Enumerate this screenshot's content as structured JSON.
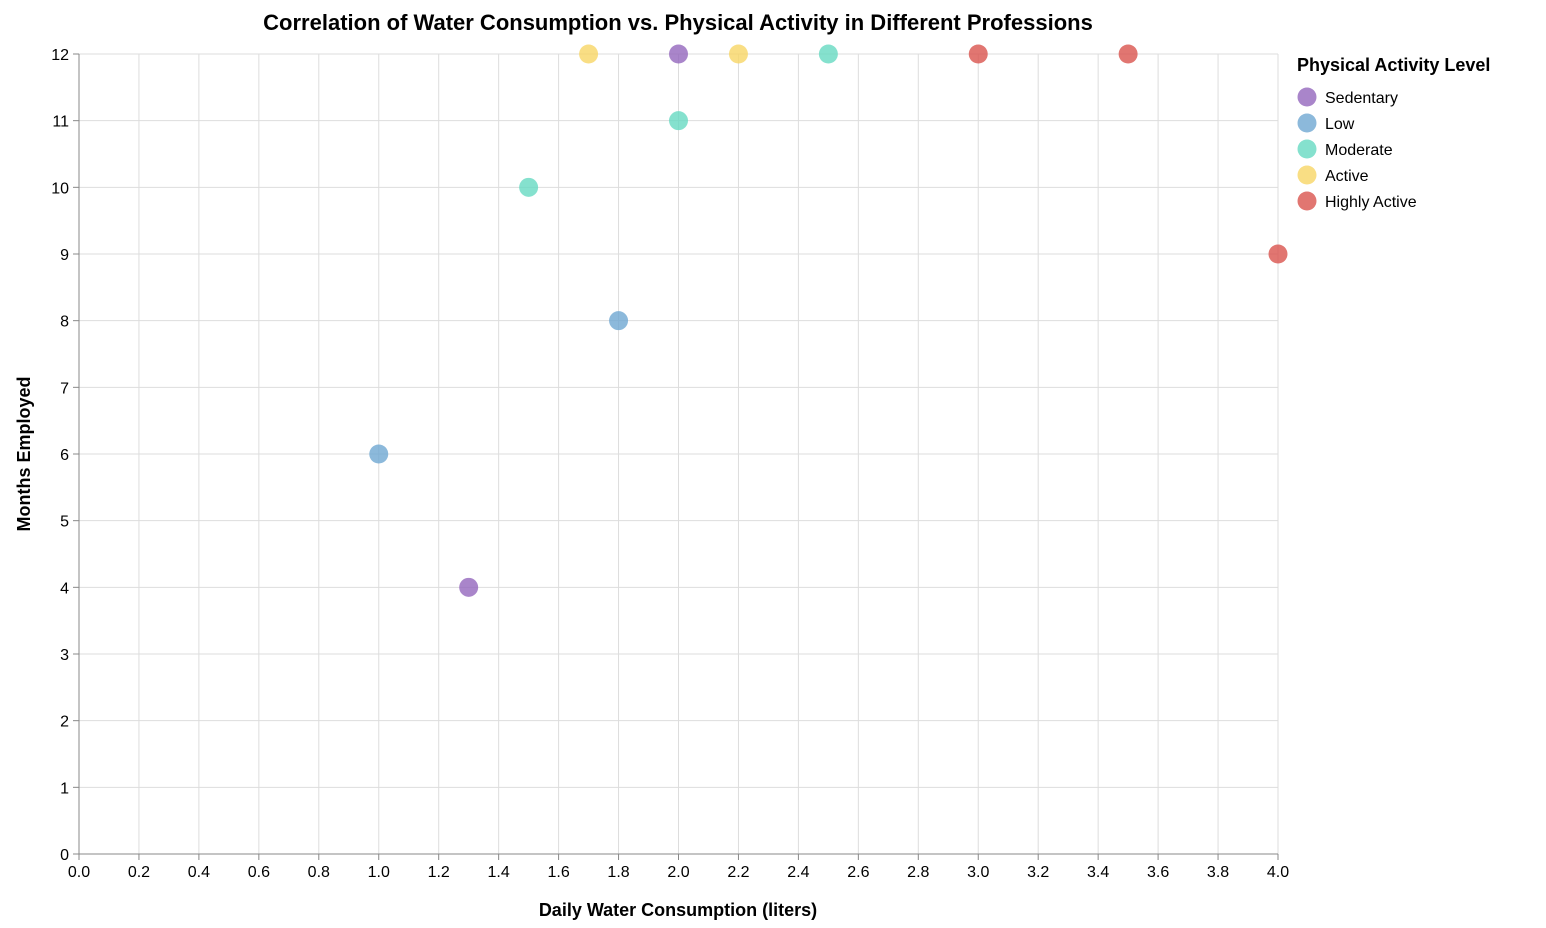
{
  "chart_data": {
    "type": "scatter",
    "title": "Correlation of Water Consumption vs. Physical Activity in Different Professions",
    "xlabel": "Daily Water Consumption (liters)",
    "ylabel": "Months Employed",
    "xlim": [
      0,
      4
    ],
    "ylim": [
      0,
      12
    ],
    "x_ticks": [
      0.0,
      0.2,
      0.4,
      0.6,
      0.8,
      1.0,
      1.2,
      1.4,
      1.6,
      1.8,
      2.0,
      2.2,
      2.4,
      2.6,
      2.8,
      3.0,
      3.2,
      3.4,
      3.6,
      3.8,
      4.0
    ],
    "x_tick_labels": [
      "0.0",
      "0.2",
      "0.4",
      "0.6",
      "0.8",
      "1.0",
      "1.2",
      "1.4",
      "1.6",
      "1.8",
      "2.0",
      "2.2",
      "2.4",
      "2.6",
      "2.8",
      "3.0",
      "3.2",
      "3.4",
      "3.6",
      "3.8",
      "4.0"
    ],
    "y_ticks": [
      0,
      1,
      2,
      3,
      4,
      5,
      6,
      7,
      8,
      9,
      10,
      11,
      12
    ],
    "y_tick_labels": [
      "0",
      "1",
      "2",
      "3",
      "4",
      "5",
      "6",
      "7",
      "8",
      "9",
      "10",
      "11",
      "12"
    ],
    "grid": true,
    "legend": {
      "title": "Physical Activity Level",
      "placement": "right-top"
    },
    "series": [
      {
        "name": "Sedentary",
        "color": "#9467bd",
        "points": [
          {
            "x": 2.0,
            "y": 12
          },
          {
            "x": 1.3,
            "y": 4
          }
        ]
      },
      {
        "name": "Low",
        "color": "#6fa8d2",
        "points": [
          {
            "x": 1.8,
            "y": 8
          },
          {
            "x": 1.0,
            "y": 6
          }
        ]
      },
      {
        "name": "Moderate",
        "color": "#66d9c2",
        "points": [
          {
            "x": 2.5,
            "y": 12
          },
          {
            "x": 2.0,
            "y": 11
          },
          {
            "x": 1.5,
            "y": 10
          }
        ]
      },
      {
        "name": "Active",
        "color": "#f8d665",
        "points": [
          {
            "x": 1.7,
            "y": 12
          },
          {
            "x": 2.2,
            "y": 12
          }
        ]
      },
      {
        "name": "Highly Active",
        "color": "#d9544d",
        "points": [
          {
            "x": 3.0,
            "y": 12
          },
          {
            "x": 3.5,
            "y": 12
          },
          {
            "x": 4.0,
            "y": 9
          }
        ]
      }
    ]
  }
}
